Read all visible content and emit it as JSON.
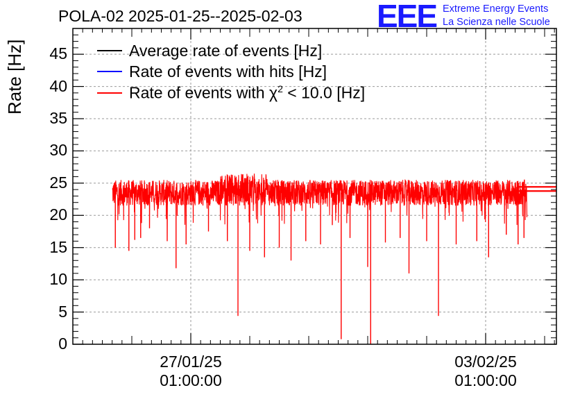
{
  "chart_data": {
    "type": "line",
    "title": "POLA-02 2025-01-25--2025-02-03",
    "xlabel": "",
    "ylabel": "Rate [Hz]",
    "ylim": [
      0,
      49
    ],
    "yticks": [
      "0",
      "5",
      "10",
      "15",
      "20",
      "25",
      "30",
      "35",
      "40",
      "45"
    ],
    "xlim_days": [
      0,
      8.2
    ],
    "xticks": [
      {
        "day": 2.0,
        "date": "27/01/25",
        "time": "01:00:00"
      },
      {
        "day": 7.0,
        "date": "03/02/25",
        "time": "01:00:00"
      }
    ],
    "grid": true,
    "legend_position": "top-left",
    "series": [
      {
        "name": "Average rate of events [Hz]",
        "color": "#000000",
        "value": 24.1,
        "x_start_day": 7.55,
        "x_end_day": 8.2
      },
      {
        "name": "Rate of events with hits [Hz]",
        "color": "#0000ff",
        "values_summary": "overlapped by red series"
      },
      {
        "name": "Rate of events with χ² < 10.0 [Hz]",
        "legend_prefix": "Rate of events with χ",
        "legend_sup": "2",
        "legend_suffix": " < 10.0 [Hz]",
        "color": "#ff0000",
        "baseline": 23.5,
        "band": [
          21.5,
          25.5
        ],
        "x_start_day": 0.67,
        "x_end_day": 7.7,
        "dips": [
          {
            "day": 0.72,
            "value": 15.0
          },
          {
            "day": 0.95,
            "value": 14.5
          },
          {
            "day": 1.05,
            "value": 16.2
          },
          {
            "day": 1.15,
            "value": 16.5
          },
          {
            "day": 1.3,
            "value": 18.0
          },
          {
            "day": 1.6,
            "value": 16.0
          },
          {
            "day": 1.75,
            "value": 11.8
          },
          {
            "day": 1.92,
            "value": 15.5
          },
          {
            "day": 2.3,
            "value": 17.5
          },
          {
            "day": 2.62,
            "value": 16.0
          },
          {
            "day": 2.8,
            "value": 4.4
          },
          {
            "day": 3.0,
            "value": 14.5
          },
          {
            "day": 3.25,
            "value": 13.5
          },
          {
            "day": 3.5,
            "value": 15.0
          },
          {
            "day": 3.7,
            "value": 13.0
          },
          {
            "day": 3.95,
            "value": 16.0
          },
          {
            "day": 4.2,
            "value": 15.5
          },
          {
            "day": 4.4,
            "value": 18.5
          },
          {
            "day": 4.55,
            "value": 0.8
          },
          {
            "day": 4.7,
            "value": 16.5
          },
          {
            "day": 5.0,
            "value": 12.0
          },
          {
            "day": 5.05,
            "value": 0.0
          },
          {
            "day": 5.3,
            "value": 15.8
          },
          {
            "day": 5.55,
            "value": 16.5
          },
          {
            "day": 5.7,
            "value": 11.0
          },
          {
            "day": 6.0,
            "value": 16.0
          },
          {
            "day": 6.2,
            "value": 4.4
          },
          {
            "day": 6.5,
            "value": 15.5
          },
          {
            "day": 6.85,
            "value": 16.0
          },
          {
            "day": 7.05,
            "value": 13.5
          },
          {
            "day": 7.35,
            "value": 17.0
          },
          {
            "day": 7.55,
            "value": 15.5
          },
          {
            "day": 7.65,
            "value": 16.5
          }
        ]
      }
    ]
  },
  "logo": {
    "mark": "EEE",
    "line1": "Extreme Energy Events",
    "line2": "La Scienza nelle Scuole"
  }
}
